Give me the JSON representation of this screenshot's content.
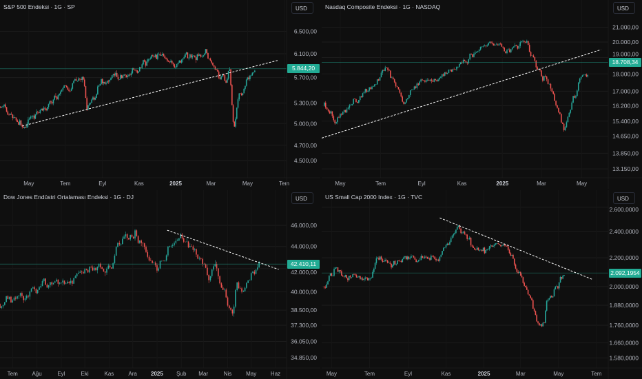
{
  "colors": {
    "background": "#0f0f0f",
    "up": "#26a69a",
    "down": "#ef5350",
    "price_label": "#22ab94",
    "grid": "#1c1c1c",
    "axis_text": "#b2b5be",
    "trendline": "#ffffff"
  },
  "chart_data": [
    {
      "type": "candlestick",
      "title": "S&P 500 Endeksi · 1G · SP",
      "currency": "USD",
      "scale": "log",
      "last_price": 5844.2,
      "last_price_label": "5.844,20",
      "ylim": [
        4284,
        7110
      ],
      "xlim": [
        "2024-03-14",
        "2025-07-05"
      ],
      "yticks": [
        {
          "label": "6.500,00",
          "value": 6500
        },
        {
          "label": "6.100,00",
          "value": 6100
        },
        {
          "label": "5.700,00",
          "value": 5700
        },
        {
          "label": "5.300,00",
          "value": 5300
        },
        {
          "label": "5.000,00",
          "value": 5000
        },
        {
          "label": "4.700,00",
          "value": 4700
        },
        {
          "label": "4.500,00",
          "value": 4500
        }
      ],
      "xticks": [
        {
          "label": "May",
          "date": "2024-05-01"
        },
        {
          "label": "Tem",
          "date": "2024-07-01"
        },
        {
          "label": "Eyl",
          "date": "2024-09-01"
        },
        {
          "label": "Kas",
          "date": "2024-11-01"
        },
        {
          "label": "2025",
          "date": "2025-01-01",
          "bold": true
        },
        {
          "label": "Mar",
          "date": "2025-03-01"
        },
        {
          "label": "May",
          "date": "2025-05-01"
        },
        {
          "label": "Tem",
          "date": "2025-07-01"
        }
      ],
      "trendline": [
        [
          "2024-04-20",
          4965
        ],
        [
          "2025-06-20",
          5985
        ]
      ],
      "approx_close_path": [
        [
          "2024-03-15",
          5250
        ],
        [
          "2024-04-19",
          4950
        ],
        [
          "2024-07-15",
          5600
        ],
        [
          "2024-08-01",
          5650
        ],
        [
          "2024-08-06",
          5200
        ],
        [
          "2024-08-30",
          5600
        ],
        [
          "2024-10-01",
          5750
        ],
        [
          "2024-10-25",
          5800
        ],
        [
          "2024-11-15",
          6000
        ],
        [
          "2024-12-06",
          6050
        ],
        [
          "2024-12-30",
          5900
        ],
        [
          "2025-01-25",
          6100
        ],
        [
          "2025-02-20",
          6100
        ],
        [
          "2025-03-13",
          5700
        ],
        [
          "2025-03-25",
          5600
        ],
        [
          "2025-04-01",
          5800
        ],
        [
          "2025-04-04",
          5400
        ],
        [
          "2025-04-08",
          4900
        ],
        [
          "2025-04-15",
          5400
        ],
        [
          "2025-04-28",
          5600
        ],
        [
          "2025-05-13",
          5850
        ]
      ]
    },
    {
      "type": "candlestick",
      "title": "Nasdaq Composite Endeksi · 1G · NASDAQ",
      "currency": "USD",
      "scale": "log",
      "last_price": 18708.34,
      "last_price_label": "18.708,34",
      "ylim": [
        12770,
        22980
      ],
      "xlim": [
        "2024-04-03",
        "2025-06-10"
      ],
      "yticks": [
        {
          "label": "21.000,00",
          "value": 21000
        },
        {
          "label": "20.000,00",
          "value": 20000
        },
        {
          "label": "19.000,00",
          "value": 19000
        },
        {
          "label": "18.000,00",
          "value": 18000
        },
        {
          "label": "17.000,00",
          "value": 17000
        },
        {
          "label": "16.200,00",
          "value": 16200
        },
        {
          "label": "15.400,00",
          "value": 15400
        },
        {
          "label": "14.650,00",
          "value": 14650
        },
        {
          "label": "13.850,00",
          "value": 13850
        },
        {
          "label": "13.150,00",
          "value": 13150
        }
      ],
      "xticks": [
        {
          "label": "May",
          "date": "2024-05-01"
        },
        {
          "label": "Tem",
          "date": "2024-07-01"
        },
        {
          "label": "Eyl",
          "date": "2024-09-01"
        },
        {
          "label": "Kas",
          "date": "2024-11-01"
        },
        {
          "label": "2025",
          "date": "2025-01-01",
          "bold": true
        },
        {
          "label": "Mar",
          "date": "2025-03-01"
        },
        {
          "label": "May",
          "date": "2025-05-01"
        }
      ],
      "trendline": [
        [
          "2024-04-03",
          14560
        ],
        [
          "2025-05-30",
          19500
        ]
      ],
      "approx_close_path": [
        [
          "2024-04-07",
          16200
        ],
        [
          "2024-04-23",
          15500
        ],
        [
          "2024-06-20",
          17500
        ],
        [
          "2024-07-10",
          18300
        ],
        [
          "2024-07-26",
          17000
        ],
        [
          "2024-08-05",
          16400
        ],
        [
          "2024-08-22",
          17500
        ],
        [
          "2024-09-22",
          17800
        ],
        [
          "2024-10-24",
          18400
        ],
        [
          "2024-11-25",
          19500
        ],
        [
          "2024-12-15",
          20000
        ],
        [
          "2025-01-05",
          19400
        ],
        [
          "2025-02-06",
          20000
        ],
        [
          "2025-02-22",
          18300
        ],
        [
          "2025-03-10",
          17600
        ],
        [
          "2025-03-26",
          16000
        ],
        [
          "2025-04-05",
          14900
        ],
        [
          "2025-04-18",
          16500
        ],
        [
          "2025-05-02",
          17800
        ],
        [
          "2025-05-10",
          18000
        ]
      ]
    },
    {
      "type": "candlestick",
      "title": "Dow Jones Endüstri Ortalaması Endeksi · 1G · DJ",
      "currency": "USD",
      "scale": "log",
      "last_price": 42410.11,
      "last_price_label": "42.410,11",
      "ylim": [
        34100,
        49520
      ],
      "xlim": [
        "2024-06-15",
        "2025-06-15"
      ],
      "yticks": [
        {
          "label": "46.000,00",
          "value": 46000
        },
        {
          "label": "44.000,00",
          "value": 44000
        },
        {
          "label": "42.000,00",
          "value": 42000
        },
        {
          "label": "40.000,00",
          "value": 40000
        },
        {
          "label": "38.500,00",
          "value": 38500
        },
        {
          "label": "37.300,00",
          "value": 37300
        },
        {
          "label": "36.050,00",
          "value": 36050
        },
        {
          "label": "34.850,00",
          "value": 34850
        }
      ],
      "xticks": [
        {
          "label": "Tem",
          "date": "2024-07-01"
        },
        {
          "label": "Ağu",
          "date": "2024-08-01"
        },
        {
          "label": "Eyl",
          "date": "2024-09-01"
        },
        {
          "label": "Eki",
          "date": "2024-10-01"
        },
        {
          "label": "Kas",
          "date": "2024-11-01"
        },
        {
          "label": "Ara",
          "date": "2024-12-01"
        },
        {
          "label": "2025",
          "date": "2025-01-01",
          "bold": true
        },
        {
          "label": "Şub",
          "date": "2025-02-01"
        },
        {
          "label": "Mar",
          "date": "2025-03-01"
        },
        {
          "label": "Nis",
          "date": "2025-04-01"
        },
        {
          "label": "May",
          "date": "2025-05-01"
        },
        {
          "label": "Haz",
          "date": "2025-06-01"
        }
      ],
      "trendline": [
        [
          "2025-01-14",
          45530
        ],
        [
          "2025-06-05",
          41930
        ]
      ],
      "approx_close_path": [
        [
          "2024-06-15",
          39000
        ],
        [
          "2024-07-10",
          39500
        ],
        [
          "2024-08-05",
          40500
        ],
        [
          "2024-09-01",
          41000
        ],
        [
          "2024-09-28",
          41700
        ],
        [
          "2024-10-23",
          42000
        ],
        [
          "2024-11-04",
          42300
        ],
        [
          "2024-11-15",
          44300
        ],
        [
          "2024-12-03",
          45000
        ],
        [
          "2024-12-24",
          43000
        ],
        [
          "2025-01-02",
          42500
        ],
        [
          "2025-01-19",
          44500
        ],
        [
          "2025-01-28",
          44800
        ],
        [
          "2025-02-18",
          43500
        ],
        [
          "2025-03-07",
          41500
        ],
        [
          "2025-03-15",
          42500
        ],
        [
          "2025-03-28",
          40000
        ],
        [
          "2025-04-07",
          37800
        ],
        [
          "2025-04-12",
          40500
        ],
        [
          "2025-04-20",
          40000
        ],
        [
          "2025-05-03",
          41500
        ],
        [
          "2025-05-12",
          42500
        ]
      ]
    },
    {
      "type": "candlestick",
      "title": "US Small Cap 2000 Index · 1G · TVC",
      "currency": "USD",
      "scale": "log",
      "last_price": 2092.1954,
      "last_price_label": "2.092,1954",
      "ylim": [
        1528,
        2751
      ],
      "xlim": [
        "2024-04-15",
        "2025-07-20"
      ],
      "yticks": [
        {
          "label": "2.600,0000",
          "value": 2600
        },
        {
          "label": "2.400,0000",
          "value": 2400
        },
        {
          "label": "2.200,0000",
          "value": 2200
        },
        {
          "label": "2.000,0000",
          "value": 2000
        },
        {
          "label": "1.880,0000",
          "value": 1880
        },
        {
          "label": "1.760,0000",
          "value": 1760
        },
        {
          "label": "1.660,0000",
          "value": 1660
        },
        {
          "label": "1.580,0000",
          "value": 1580
        }
      ],
      "xticks": [
        {
          "label": "May",
          "date": "2024-05-01"
        },
        {
          "label": "Tem",
          "date": "2024-07-01"
        },
        {
          "label": "Eyl",
          "date": "2024-09-01"
        },
        {
          "label": "Kas",
          "date": "2024-11-01"
        },
        {
          "label": "2025",
          "date": "2025-01-01",
          "bold": true
        },
        {
          "label": "Mar",
          "date": "2025-03-01"
        },
        {
          "label": "May",
          "date": "2025-05-01"
        },
        {
          "label": "Tem",
          "date": "2025-07-01"
        }
      ],
      "trendline": [
        [
          "2024-10-22",
          2510
        ],
        [
          "2025-06-25",
          2047
        ]
      ],
      "approx_close_path": [
        [
          "2024-04-19",
          2000
        ],
        [
          "2024-05-05",
          2100
        ],
        [
          "2024-05-21",
          2060
        ],
        [
          "2024-07-03",
          2060
        ],
        [
          "2024-07-12",
          2200
        ],
        [
          "2024-08-05",
          2150
        ],
        [
          "2024-09-06",
          2200
        ],
        [
          "2024-10-20",
          2200
        ],
        [
          "2024-11-10",
          2350
        ],
        [
          "2024-11-21",
          2450
        ],
        [
          "2024-12-13",
          2300
        ],
        [
          "2025-01-03",
          2250
        ],
        [
          "2025-02-04",
          2300
        ],
        [
          "2025-02-15",
          2200
        ],
        [
          "2025-03-03",
          2050
        ],
        [
          "2025-03-19",
          1900
        ],
        [
          "2025-03-30",
          1780
        ],
        [
          "2025-04-07",
          1750
        ],
        [
          "2025-04-12",
          1900
        ],
        [
          "2025-04-28",
          2000
        ],
        [
          "2025-05-10",
          2080
        ]
      ]
    }
  ]
}
